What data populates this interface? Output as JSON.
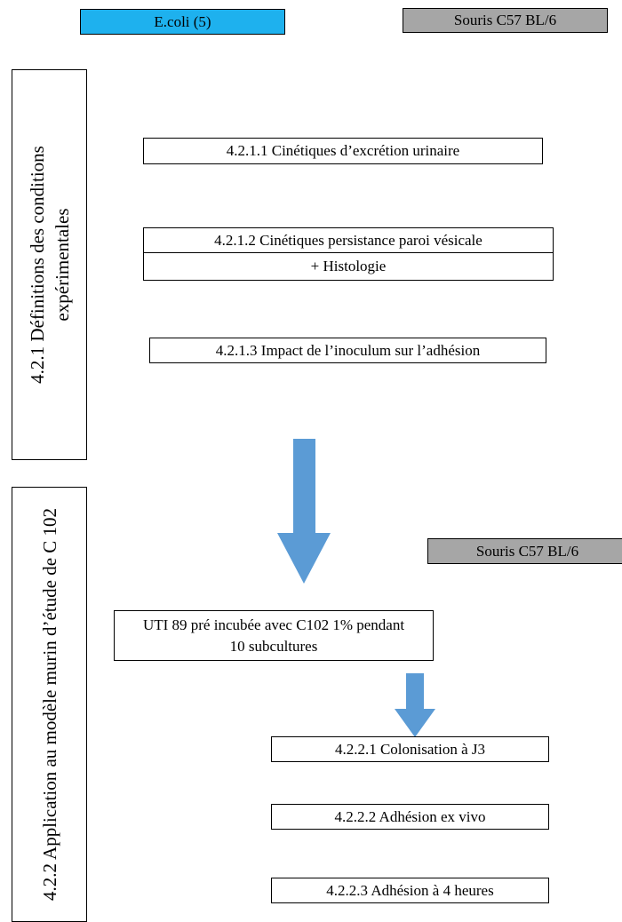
{
  "top": {
    "bacteria": "E.coli (5)",
    "mouse": "Souris C57 BL/6"
  },
  "section1": {
    "title": "4.2.1 Définitions des conditions expérimentales",
    "steps": [
      "4.2.1.1 Cinétiques d’excrétion urinaire",
      "4.2.1.2 Cinétiques  persistance paroi vésicale",
      "+ Histologie",
      "4.2.1.3 Impact de l’inoculum sur l’adhésion"
    ]
  },
  "section2": {
    "title": "4.2.2 Application au modèle murin d’étude de C 102",
    "mouse": "Souris C57 BL/6",
    "preparation": "UTI 89 pré incubée avec C102 1% pendant 10 subcultures",
    "steps": [
      "4.2.2.1 Colonisation à J3",
      "4.2.2.2 Adhésion ex vivo",
      "4.2.2.3 Adhésion à 4 heures"
    ]
  }
}
